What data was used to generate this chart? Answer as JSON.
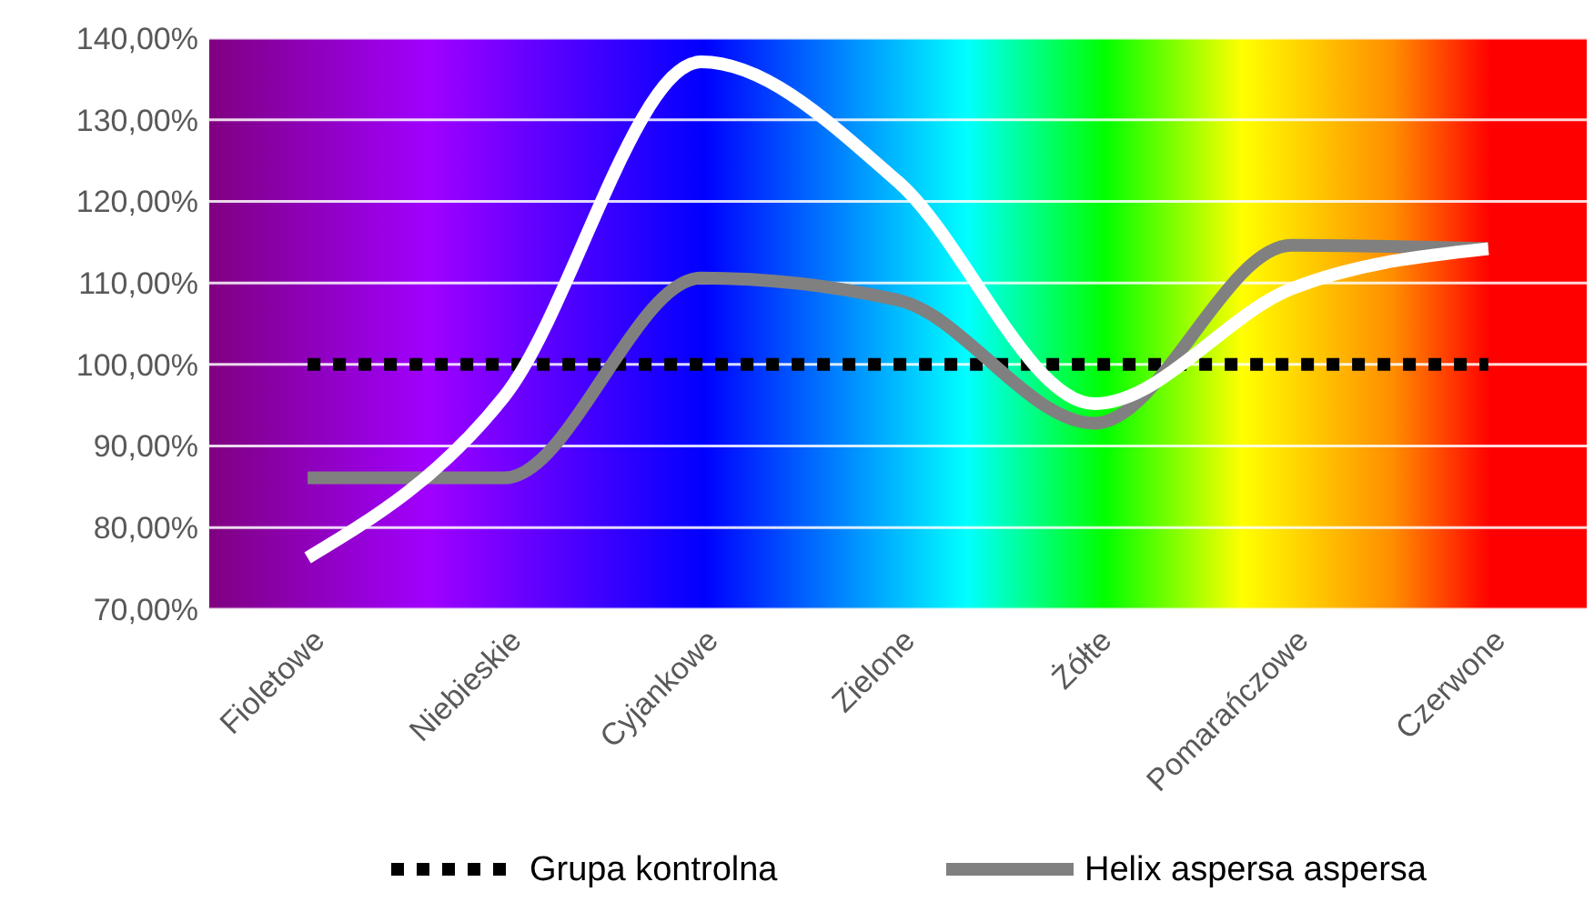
{
  "chart_data": {
    "type": "line",
    "categories": [
      "Fioletowe",
      "Niebieskie",
      "Cyjankowe",
      "Zielone",
      "Żółte",
      "Pomarańczowe",
      "Czerwone"
    ],
    "series": [
      {
        "name": "Grupa kontrolna",
        "color": "#000000",
        "line_style": "dotted",
        "values": [
          100,
          100,
          100,
          100,
          100,
          100,
          100
        ]
      },
      {
        "name": "Helix aspersa aspersa",
        "color": "#808080",
        "line_style": "solid",
        "values": [
          86.1,
          86.1,
          110.6,
          107.9,
          92.8,
          114.6,
          114.2
        ]
      },
      {
        "color": "#ffffff",
        "line_style": "solid",
        "values": [
          76.3,
          96.1,
          137.1,
          122.4,
          95.2,
          109.3,
          114.2
        ]
      }
    ],
    "ylim": [
      70,
      140
    ],
    "yticks": [
      {
        "value": 70,
        "label": "70,00%"
      },
      {
        "value": 80,
        "label": "80,00%"
      },
      {
        "value": 90,
        "label": "90,00%"
      },
      {
        "value": 100,
        "label": "100,00%"
      },
      {
        "value": 110,
        "label": "110,00%"
      },
      {
        "value": 120,
        "label": "120,00%"
      },
      {
        "value": 130,
        "label": "130,00%"
      },
      {
        "value": 140,
        "label": "140,00%"
      }
    ],
    "grid": "y",
    "legend": "bottom",
    "marker": "none"
  }
}
